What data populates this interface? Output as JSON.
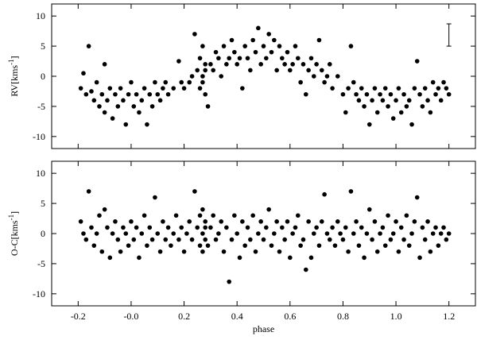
{
  "chart_data": [
    {
      "type": "scatter",
      "ylabel": {
        "text": "RV[kms",
        "sup": "-1",
        "end": "]"
      },
      "xlim": [
        -0.3,
        1.3
      ],
      "xticks": [
        -0.2,
        0,
        0.2,
        0.4,
        0.6,
        0.8,
        1,
        1.2
      ],
      "ylim": [
        -12,
        12
      ],
      "yticks": [
        10,
        5,
        0,
        -5,
        -10
      ],
      "color": "#000000",
      "error_bar": {
        "x": 1.2,
        "y": 6.85,
        "error": 1.85
      },
      "x": [
        -0.19,
        -0.18,
        -0.17,
        -0.16,
        -0.15,
        -0.14,
        -0.13,
        -0.12,
        -0.11,
        -0.1,
        -0.1,
        -0.09,
        -0.08,
        -0.07,
        -0.06,
        -0.05,
        -0.04,
        -0.03,
        -0.02,
        -0.01,
        0,
        0.01,
        0.02,
        0.03,
        0.04,
        0.05,
        0.06,
        0.07,
        0.08,
        0.09,
        0.1,
        0.11,
        0.12,
        0.13,
        0.14,
        0.16,
        0.18,
        0.19,
        0.2,
        0.22,
        0.23,
        0.24,
        0.25,
        0.26,
        0.26,
        0.27,
        0.27,
        0.27,
        0.28,
        0.28,
        0.28,
        0.29,
        0.3,
        0.31,
        0.32,
        0.33,
        0.34,
        0.35,
        0.36,
        0.37,
        0.38,
        0.39,
        0.4,
        0.41,
        0.42,
        0.43,
        0.44,
        0.45,
        0.46,
        0.47,
        0.48,
        0.49,
        0.5,
        0.51,
        0.52,
        0.53,
        0.54,
        0.55,
        0.56,
        0.57,
        0.58,
        0.59,
        0.6,
        0.61,
        0.62,
        0.63,
        0.64,
        0.65,
        0.66,
        0.67,
        0.68,
        0.69,
        0.7,
        0.71,
        0.72,
        0.73,
        0.74,
        0.75,
        0.76,
        0.78,
        0.8,
        0.81,
        0.82,
        0.83,
        0.84,
        0.85,
        0.86,
        0.87,
        0.88,
        0.89,
        0.9,
        0.91,
        0.92,
        0.93,
        0.94,
        0.95,
        0.96,
        0.97,
        0.98,
        0.99,
        1,
        1.01,
        1.02,
        1.03,
        1.04,
        1.05,
        1.06,
        1.07,
        1.08,
        1.09,
        1.1,
        1.11,
        1.12,
        1.13,
        1.14,
        1.15,
        1.16,
        1.17,
        1.18,
        1.19,
        1.2
      ],
      "values": [
        -2,
        0.5,
        -3,
        5,
        -2.5,
        -4,
        -1,
        -5,
        -3,
        2,
        -6,
        -4,
        -2,
        -7,
        -3,
        -5,
        -2,
        -4,
        -8,
        -3,
        -1,
        -5,
        -3,
        -6,
        -4,
        -2,
        -8,
        -3,
        -5,
        -1,
        -3,
        -4,
        -2,
        -1,
        -3,
        -2,
        2.5,
        -1,
        -2,
        -1,
        0,
        7,
        1,
        3,
        -2,
        0,
        5,
        -1,
        2,
        -3,
        1,
        -5,
        2,
        1,
        4,
        3,
        0,
        5,
        2,
        3,
        6,
        4,
        2,
        3,
        -2,
        5,
        3,
        1,
        6,
        4,
        8,
        2,
        5,
        3,
        7,
        4,
        6,
        1,
        5,
        3,
        2,
        4,
        1,
        2,
        5,
        3,
        -1,
        2,
        -3,
        1,
        3,
        0,
        2,
        6,
        1,
        -1,
        0,
        2,
        -2,
        0,
        -3,
        -6,
        -2,
        5,
        -1,
        -3,
        -4,
        -2,
        -5,
        -3,
        -8,
        -4,
        -2,
        -6,
        -3,
        -4,
        -2,
        -5,
        -3,
        -7,
        -4,
        -2,
        -6,
        -3,
        -5,
        -4,
        -8,
        -2,
        2.5,
        -3,
        -5,
        -2,
        -4,
        -6,
        -1,
        -3,
        -2,
        -4,
        -1,
        -2,
        -3
      ]
    },
    {
      "type": "scatter",
      "ylabel": {
        "text": "O-C[kms",
        "sup": "-1",
        "end": "]"
      },
      "xlabel": "phase",
      "xlim": [
        -0.3,
        1.3
      ],
      "xticks": [
        -0.2,
        {
          "value": 0,
          "label": "-0.0"
        },
        0.2,
        0.4,
        0.6,
        0.8,
        {
          "value": 1,
          "label": "1.0"
        },
        1.2
      ],
      "ylim": [
        -12,
        12
      ],
      "yticks": [
        10,
        5,
        0,
        -5,
        -10
      ],
      "color": "#000000",
      "x": [
        -0.19,
        -0.18,
        -0.17,
        -0.16,
        -0.15,
        -0.14,
        -0.13,
        -0.12,
        -0.11,
        -0.1,
        -0.09,
        -0.08,
        -0.07,
        -0.06,
        -0.05,
        -0.04,
        -0.03,
        -0.02,
        -0.01,
        0,
        0.01,
        0.02,
        0.03,
        0.04,
        0.05,
        0.06,
        0.07,
        0.08,
        0.09,
        0.1,
        0.11,
        0.12,
        0.13,
        0.14,
        0.15,
        0.16,
        0.17,
        0.18,
        0.19,
        0.2,
        0.21,
        0.22,
        0.23,
        0.24,
        0.25,
        0.26,
        0.26,
        0.27,
        0.27,
        0.27,
        0.28,
        0.28,
        0.28,
        0.29,
        0.3,
        0.31,
        0.32,
        0.33,
        0.34,
        0.35,
        0.36,
        0.37,
        0.38,
        0.39,
        0.4,
        0.41,
        0.42,
        0.43,
        0.44,
        0.45,
        0.46,
        0.47,
        0.48,
        0.49,
        0.5,
        0.51,
        0.52,
        0.53,
        0.54,
        0.55,
        0.56,
        0.57,
        0.58,
        0.59,
        0.6,
        0.61,
        0.62,
        0.63,
        0.64,
        0.65,
        0.66,
        0.67,
        0.68,
        0.69,
        0.7,
        0.71,
        0.72,
        0.73,
        0.74,
        0.75,
        0.76,
        0.77,
        0.78,
        0.79,
        0.8,
        0.81,
        0.82,
        0.83,
        0.84,
        0.85,
        0.86,
        0.87,
        0.88,
        0.89,
        0.9,
        0.91,
        0.92,
        0.93,
        0.94,
        0.95,
        0.96,
        0.97,
        0.98,
        0.99,
        1,
        1.01,
        1.02,
        1.03,
        1.04,
        1.05,
        1.06,
        1.07,
        1.08,
        1.09,
        1.1,
        1.11,
        1.12,
        1.13,
        1.14,
        1.15,
        1.16,
        1.17,
        1.18,
        1.19,
        1.2
      ],
      "values": [
        2,
        0,
        -1,
        7,
        1,
        -2,
        0,
        3,
        -3,
        4,
        1,
        -4,
        0,
        2,
        -1,
        -3,
        1,
        0,
        -2,
        2,
        -1,
        1,
        -4,
        0,
        3,
        -2,
        1,
        -1,
        6,
        0,
        -3,
        2,
        -1,
        1,
        -2,
        0,
        3,
        -1,
        1,
        -3,
        0,
        2,
        -1,
        7,
        1,
        -2,
        3,
        0,
        -3,
        4,
        1,
        -1,
        2,
        -2,
        1,
        3,
        -1,
        0,
        2,
        -3,
        1,
        -8,
        -1,
        3,
        0,
        -4,
        2,
        -2,
        1,
        -1,
        3,
        -3,
        0,
        2,
        -1,
        1,
        4,
        -2,
        0,
        2,
        -3,
        1,
        -1,
        2,
        -4,
        0,
        1,
        3,
        -2,
        -1,
        -6,
        2,
        -4,
        0,
        1,
        -2,
        2,
        6.5,
        0,
        -1,
        1,
        -2,
        2,
        0,
        -1,
        1,
        -3,
        7,
        0,
        2,
        -2,
        1,
        -4,
        0,
        4,
        -1,
        2,
        -3,
        0,
        1,
        -2,
        3,
        -1,
        0,
        2,
        -3,
        1,
        -1,
        3,
        -2,
        0,
        2,
        6,
        -4,
        1,
        -1,
        2,
        -3,
        0,
        1,
        -2,
        0,
        1,
        -1,
        0
      ]
    }
  ]
}
